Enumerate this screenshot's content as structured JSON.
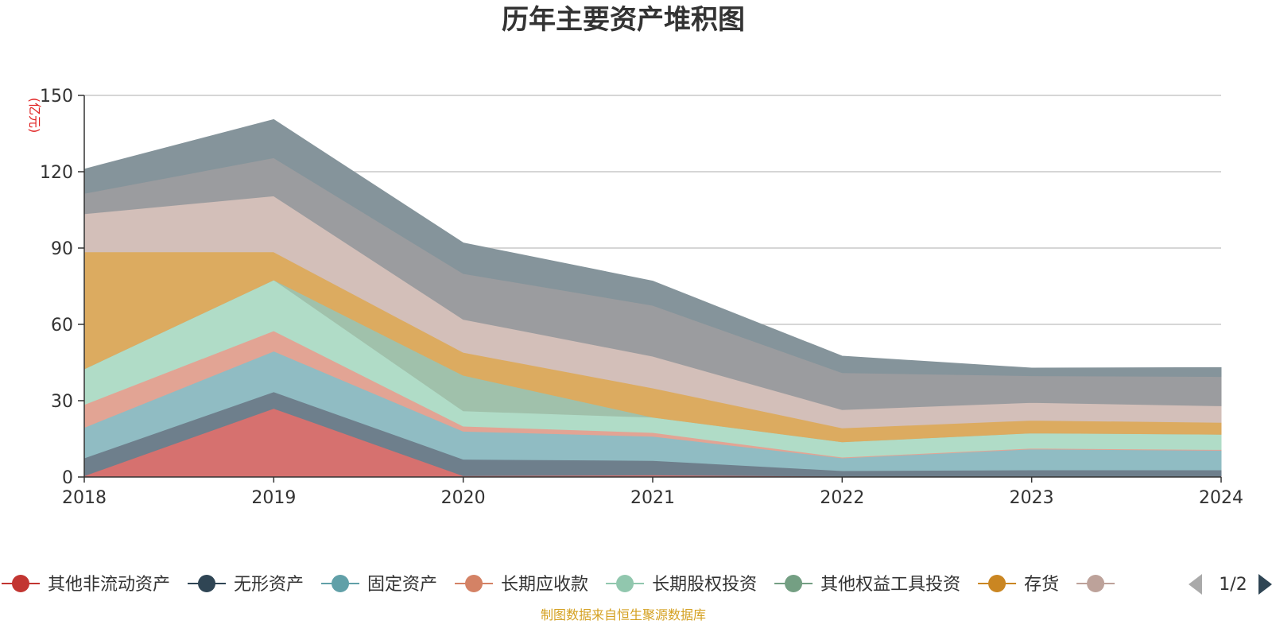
{
  "chart_data": {
    "type": "area",
    "stacked": true,
    "title": "历年主要资产堆积图",
    "unit_label": "(亿元)",
    "xlabel": "",
    "ylabel": "",
    "x": [
      "2018",
      "2019",
      "2020",
      "2021",
      "2022",
      "2023",
      "2024"
    ],
    "ylim": [
      0,
      150
    ],
    "yticks": [
      0,
      30,
      60,
      90,
      120,
      150
    ],
    "grid": true,
    "legend_position": "bottom",
    "series": [
      {
        "name": "其他非流动资产",
        "color": "#c23531",
        "fill": "#d6716f",
        "values": [
          0.5,
          27,
          0.5,
          0.8,
          0.3,
          0.3,
          0.3
        ]
      },
      {
        "name": "无形资产",
        "color": "#2f4554",
        "fill": "#6e7f8c",
        "values": [
          7,
          6.5,
          6.5,
          5.7,
          2.2,
          2.5,
          2.5
        ]
      },
      {
        "name": "固定资产",
        "color": "#61a0a8",
        "fill": "#90bcc3",
        "values": [
          12,
          16,
          11,
          9.5,
          5.0,
          8.2,
          7.7
        ]
      },
      {
        "name": "长期应收款",
        "color": "#d48265",
        "fill": "#e2a494",
        "values": [
          9,
          8,
          2,
          1.5,
          0.3,
          0.3,
          0.3
        ]
      },
      {
        "name": "长期股权投资",
        "color": "#91c7ae",
        "fill": "#b0dcc7",
        "values": [
          14,
          20,
          6,
          6,
          6,
          6,
          6
        ]
      },
      {
        "name": "其他权益工具投资",
        "color": "#749f83",
        "fill": "#a0c1ab",
        "values": [
          0,
          0,
          14,
          0,
          0,
          0,
          0
        ]
      },
      {
        "name": "存货",
        "color": "#ca8622",
        "fill": "#dcab60",
        "values": [
          46,
          11,
          9,
          11.5,
          5.5,
          5,
          4.7
        ]
      },
      {
        "name": "",
        "color": "#bda29a",
        "fill": "#d3bfb9",
        "values": [
          15,
          22,
          13,
          12.5,
          7.2,
          7,
          6.5
        ]
      },
      {
        "name": "",
        "color": "#6e7074",
        "fill": "#9b9c9f",
        "values": [
          8,
          15,
          18,
          20,
          14.5,
          10.5,
          11.5
        ]
      },
      {
        "name": "",
        "color": "#546570",
        "fill": "#85949b",
        "values": [
          9.5,
          15,
          12,
          9.5,
          6.5,
          3,
          3.5
        ]
      }
    ]
  },
  "legend": {
    "page_indicator": "1/2",
    "visible_count": 8,
    "prev_icon": "triangle-left-icon",
    "next_icon": "triangle-right-icon"
  },
  "footer": {
    "source": "制图数据来自恒生聚源数据库"
  }
}
